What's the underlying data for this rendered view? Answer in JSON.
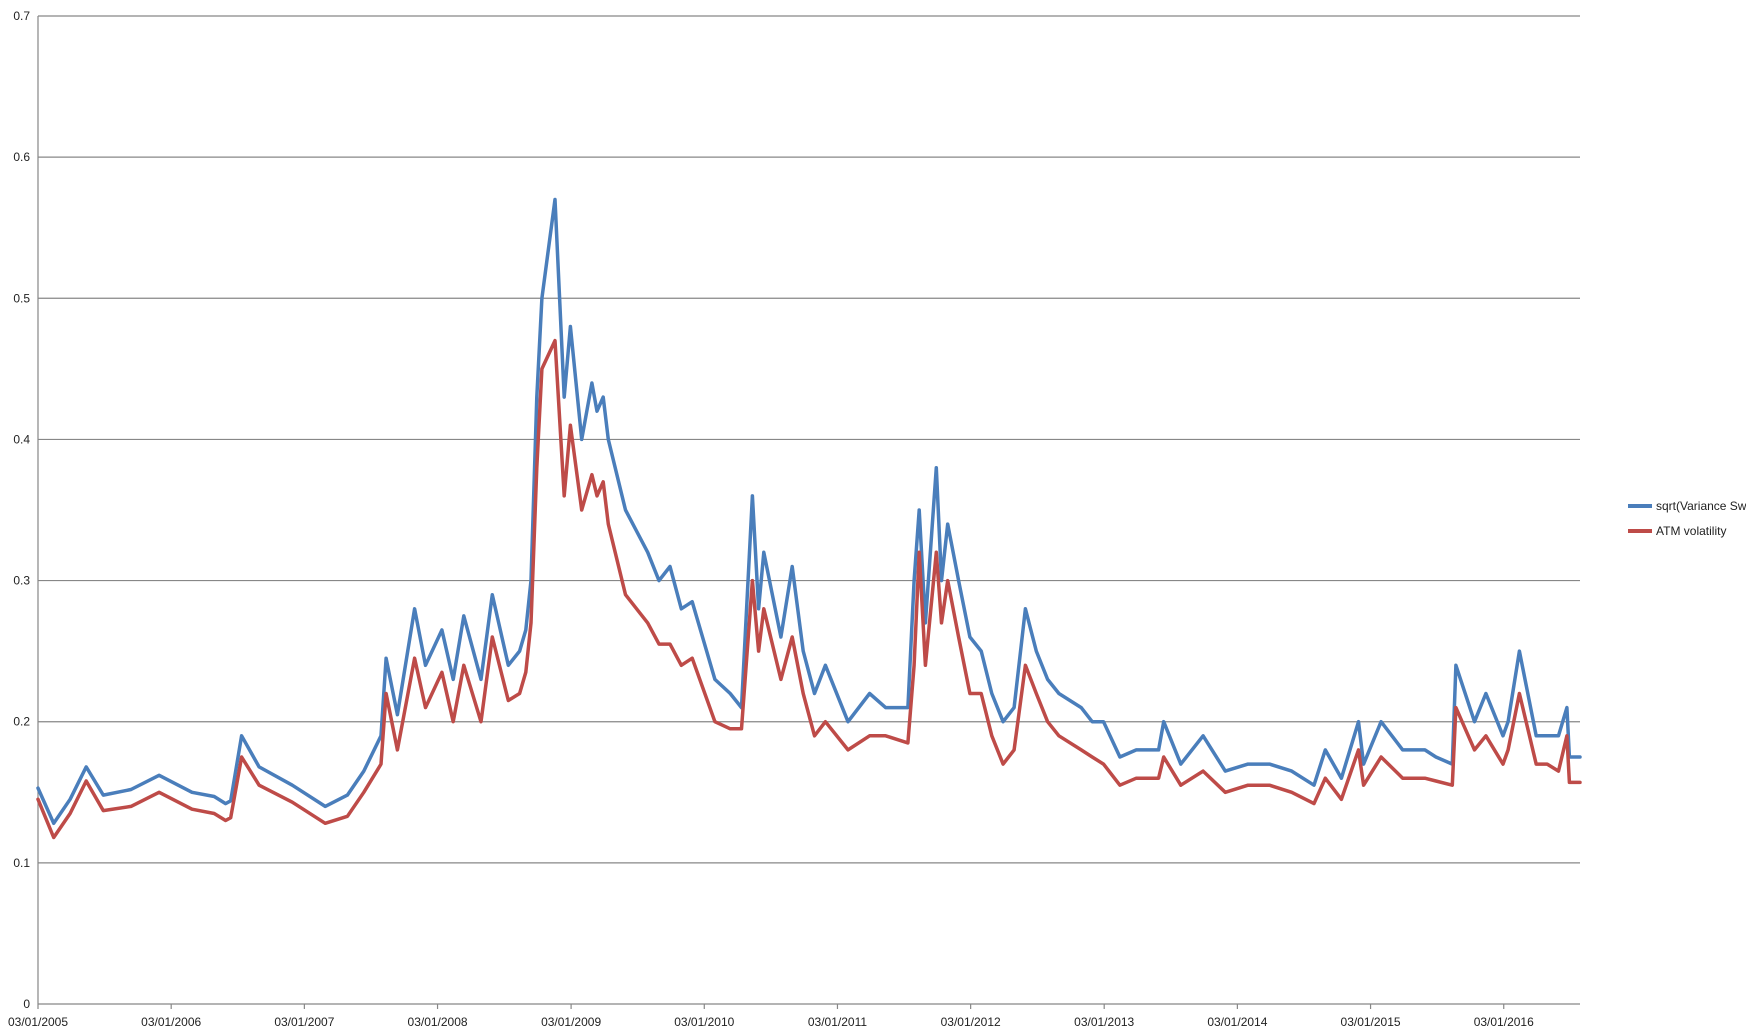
{
  "chart_data": {
    "type": "line",
    "title": "",
    "xlabel": "",
    "ylabel": "",
    "ylim": [
      0,
      0.7
    ],
    "y_ticks": [
      "0",
      "0.1",
      "0.2",
      "0.3",
      "0.4",
      "0.5",
      "0.6",
      "0.7"
    ],
    "x_ticks": [
      "03/01/2005",
      "03/01/2006",
      "03/01/2007",
      "03/01/2008",
      "03/01/2009",
      "03/01/2010",
      "03/01/2011",
      "03/01/2012",
      "03/01/2013",
      "03/01/2014",
      "03/01/2015",
      "03/01/2016"
    ],
    "x_range": [
      "03/01/2005",
      "30/07/2016"
    ],
    "grid": "horizontal",
    "legend": "right",
    "series": [
      {
        "name": "sqrt(Variance Swap)",
        "color": "#4a7ebb",
        "x": [
          "03/01/2005",
          "15/02/2005",
          "01/04/2005",
          "15/05/2005",
          "01/07/2005",
          "15/09/2005",
          "01/12/2005",
          "01/03/2006",
          "01/05/2006",
          "01/06/2006",
          "15/06/2006",
          "15/07/2006",
          "01/09/2006",
          "01/12/2006",
          "01/03/2007",
          "01/05/2007",
          "15/06/2007",
          "01/08/2007",
          "15/08/2007",
          "15/09/2007",
          "01/11/2007",
          "01/12/2007",
          "15/01/2008",
          "15/02/2008",
          "15/03/2008",
          "01/05/2008",
          "01/06/2008",
          "15/07/2008",
          "15/08/2008",
          "01/09/2008",
          "15/09/2008",
          "01/10/2008",
          "15/10/2008",
          "20/11/2008",
          "15/12/2008",
          "01/01/2009",
          "01/02/2009",
          "01/03/2009",
          "15/03/2009",
          "01/04/2009",
          "15/04/2009",
          "01/06/2009",
          "01/08/2009",
          "01/09/2009",
          "01/10/2009",
          "01/11/2009",
          "01/12/2009",
          "01/02/2010",
          "15/03/2010",
          "15/04/2010",
          "15/05/2010",
          "01/06/2010",
          "15/06/2010",
          "01/08/2010",
          "01/09/2010",
          "01/10/2010",
          "01/11/2010",
          "01/12/2010",
          "01/02/2011",
          "01/04/2011",
          "15/05/2011",
          "15/07/2011",
          "01/08/2011",
          "15/08/2011",
          "01/09/2011",
          "01/10/2011",
          "15/10/2011",
          "01/11/2011",
          "01/12/2011",
          "01/01/2012",
          "01/02/2012",
          "01/03/2012",
          "01/04/2012",
          "01/05/2012",
          "01/06/2012",
          "01/07/2012",
          "01/08/2012",
          "01/09/2012",
          "01/11/2012",
          "01/12/2012",
          "01/01/2013",
          "15/02/2013",
          "01/04/2013",
          "01/06/2013",
          "15/06/2013",
          "01/08/2013",
          "01/10/2013",
          "01/12/2013",
          "01/02/2014",
          "01/04/2014",
          "01/06/2014",
          "01/08/2014",
          "01/09/2014",
          "15/10/2014",
          "01/12/2014",
          "15/12/2014",
          "01/02/2015",
          "01/04/2015",
          "01/06/2015",
          "01/07/2015",
          "15/08/2015",
          "25/08/2015",
          "15/10/2015",
          "15/11/2015",
          "01/01/2016",
          "15/01/2016",
          "15/02/2016",
          "01/04/2016",
          "01/05/2016",
          "01/06/2016",
          "24/06/2016",
          "01/07/2016",
          "30/07/2016"
        ],
        "values": [
          0.153,
          0.128,
          0.145,
          0.168,
          0.148,
          0.152,
          0.162,
          0.15,
          0.147,
          0.142,
          0.144,
          0.19,
          0.168,
          0.155,
          0.14,
          0.148,
          0.165,
          0.19,
          0.245,
          0.205,
          0.28,
          0.24,
          0.265,
          0.23,
          0.275,
          0.23,
          0.29,
          0.24,
          0.25,
          0.265,
          0.3,
          0.43,
          0.5,
          0.57,
          0.43,
          0.48,
          0.4,
          0.44,
          0.42,
          0.43,
          0.4,
          0.35,
          0.32,
          0.3,
          0.31,
          0.28,
          0.285,
          0.23,
          0.22,
          0.21,
          0.36,
          0.28,
          0.32,
          0.26,
          0.31,
          0.25,
          0.22,
          0.24,
          0.2,
          0.22,
          0.21,
          0.21,
          0.3,
          0.35,
          0.27,
          0.38,
          0.3,
          0.34,
          0.3,
          0.26,
          0.25,
          0.22,
          0.2,
          0.21,
          0.28,
          0.25,
          0.23,
          0.22,
          0.21,
          0.2,
          0.2,
          0.175,
          0.18,
          0.18,
          0.2,
          0.17,
          0.19,
          0.165,
          0.17,
          0.17,
          0.165,
          0.155,
          0.18,
          0.16,
          0.2,
          0.17,
          0.2,
          0.18,
          0.18,
          0.175,
          0.17,
          0.24,
          0.2,
          0.22,
          0.19,
          0.2,
          0.25,
          0.19,
          0.19,
          0.19,
          0.21,
          0.175,
          0.175
        ]
      },
      {
        "name": "ATM volatility",
        "color": "#be4b48",
        "x": [
          "03/01/2005",
          "15/02/2005",
          "01/04/2005",
          "15/05/2005",
          "01/07/2005",
          "15/09/2005",
          "01/12/2005",
          "01/03/2006",
          "01/05/2006",
          "01/06/2006",
          "15/06/2006",
          "15/07/2006",
          "01/09/2006",
          "01/12/2006",
          "01/03/2007",
          "01/05/2007",
          "15/06/2007",
          "01/08/2007",
          "15/08/2007",
          "15/09/2007",
          "01/11/2007",
          "01/12/2007",
          "15/01/2008",
          "15/02/2008",
          "15/03/2008",
          "01/05/2008",
          "01/06/2008",
          "15/07/2008",
          "15/08/2008",
          "01/09/2008",
          "15/09/2008",
          "01/10/2008",
          "15/10/2008",
          "20/11/2008",
          "15/12/2008",
          "01/01/2009",
          "01/02/2009",
          "01/03/2009",
          "15/03/2009",
          "01/04/2009",
          "15/04/2009",
          "01/06/2009",
          "01/08/2009",
          "01/09/2009",
          "01/10/2009",
          "01/11/2009",
          "01/12/2009",
          "01/02/2010",
          "15/03/2010",
          "15/04/2010",
          "15/05/2010",
          "01/06/2010",
          "15/06/2010",
          "01/08/2010",
          "01/09/2010",
          "01/10/2010",
          "01/11/2010",
          "01/12/2010",
          "01/02/2011",
          "01/04/2011",
          "15/05/2011",
          "15/07/2011",
          "01/08/2011",
          "15/08/2011",
          "01/09/2011",
          "01/10/2011",
          "15/10/2011",
          "01/11/2011",
          "01/12/2011",
          "01/01/2012",
          "01/02/2012",
          "01/03/2012",
          "01/04/2012",
          "01/05/2012",
          "01/06/2012",
          "01/07/2012",
          "01/08/2012",
          "01/09/2012",
          "01/11/2012",
          "01/12/2012",
          "01/01/2013",
          "15/02/2013",
          "01/04/2013",
          "01/06/2013",
          "15/06/2013",
          "01/08/2013",
          "01/10/2013",
          "01/12/2013",
          "01/02/2014",
          "01/04/2014",
          "01/06/2014",
          "01/08/2014",
          "01/09/2014",
          "15/10/2014",
          "01/12/2014",
          "15/12/2014",
          "01/02/2015",
          "01/04/2015",
          "01/06/2015",
          "01/07/2015",
          "15/08/2015",
          "25/08/2015",
          "15/10/2015",
          "15/11/2015",
          "01/01/2016",
          "15/01/2016",
          "15/02/2016",
          "01/04/2016",
          "01/05/2016",
          "01/06/2016",
          "24/06/2016",
          "01/07/2016",
          "30/07/2016"
        ],
        "values": [
          0.145,
          0.118,
          0.135,
          0.158,
          0.137,
          0.14,
          0.15,
          0.138,
          0.135,
          0.13,
          0.132,
          0.175,
          0.155,
          0.143,
          0.128,
          0.133,
          0.15,
          0.17,
          0.22,
          0.18,
          0.245,
          0.21,
          0.235,
          0.2,
          0.24,
          0.2,
          0.26,
          0.215,
          0.22,
          0.235,
          0.27,
          0.38,
          0.45,
          0.47,
          0.36,
          0.41,
          0.35,
          0.375,
          0.36,
          0.37,
          0.34,
          0.29,
          0.27,
          0.255,
          0.255,
          0.24,
          0.245,
          0.2,
          0.195,
          0.195,
          0.3,
          0.25,
          0.28,
          0.23,
          0.26,
          0.22,
          0.19,
          0.2,
          0.18,
          0.19,
          0.19,
          0.185,
          0.24,
          0.32,
          0.24,
          0.32,
          0.27,
          0.3,
          0.26,
          0.22,
          0.22,
          0.19,
          0.17,
          0.18,
          0.24,
          0.22,
          0.2,
          0.19,
          0.18,
          0.175,
          0.17,
          0.155,
          0.16,
          0.16,
          0.175,
          0.155,
          0.165,
          0.15,
          0.155,
          0.155,
          0.15,
          0.142,
          0.16,
          0.145,
          0.18,
          0.155,
          0.175,
          0.16,
          0.16,
          0.158,
          0.155,
          0.21,
          0.18,
          0.19,
          0.17,
          0.18,
          0.22,
          0.17,
          0.17,
          0.165,
          0.19,
          0.157,
          0.157
        ]
      }
    ]
  }
}
